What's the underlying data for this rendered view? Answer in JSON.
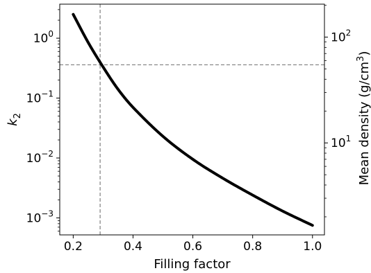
{
  "chart_data": {
    "type": "line",
    "title": "",
    "xlabel": "Filling factor",
    "ylabel_left_base": "k",
    "ylabel_left_sub": "2",
    "ylabel_right": "Mean density (g/cm",
    "ylabel_right_sup": "3",
    "ylabel_right_close": ")",
    "xlim": [
      0.155,
      1.04
    ],
    "ylim_left": [
      0.00052,
      3.7
    ],
    "ylim_right": [
      1.35,
      205
    ],
    "y_scale": "log",
    "grid": false,
    "x_ticks": [
      0.2,
      0.4,
      0.6,
      0.8,
      1.0
    ],
    "x_tick_labels": [
      "0.2",
      "0.4",
      "0.6",
      "0.8",
      "1.0"
    ],
    "left_ticks": [
      {
        "value": 1,
        "base": "10",
        "exp": "0"
      },
      {
        "value": 0.1,
        "base": "10",
        "exp": "−1"
      },
      {
        "value": 0.01,
        "base": "10",
        "exp": "−2"
      },
      {
        "value": 0.001,
        "base": "10",
        "exp": "−3"
      }
    ],
    "right_ticks": [
      {
        "value": 100,
        "base": "10",
        "exp": "2"
      },
      {
        "value": 10,
        "base": "10",
        "exp": "1"
      }
    ],
    "series": [
      {
        "color": "#000000",
        "x": [
          0.2,
          0.25,
          0.3,
          0.35,
          0.4,
          0.5,
          0.6,
          0.7,
          0.8,
          0.9,
          1.0
        ],
        "y": [
          2.5,
          0.85,
          0.33,
          0.14,
          0.07,
          0.023,
          0.0095,
          0.0046,
          0.0024,
          0.0013,
          0.00075
        ]
      }
    ],
    "reference_lines": {
      "vertical_x": 0.29,
      "horizontal_y": 0.36,
      "color": "#888888",
      "style": "dashed"
    }
  }
}
